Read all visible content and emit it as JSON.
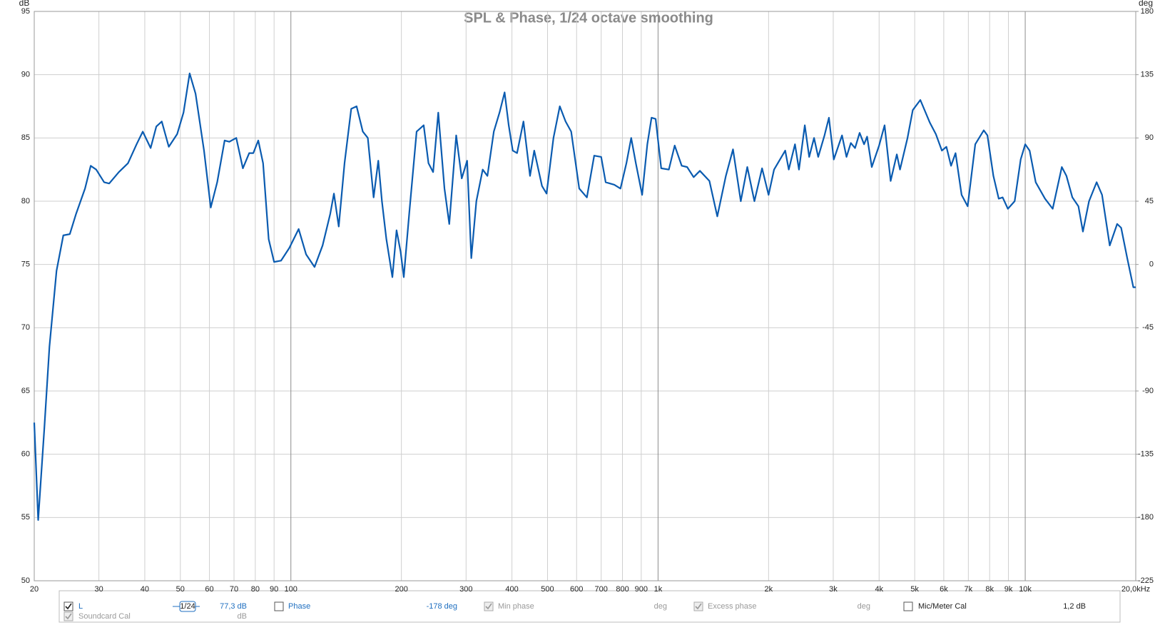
{
  "chart_data": {
    "type": "line",
    "title": "SPL & Phase, 1/24 octave smoothing",
    "y_label": "dB",
    "y2_label": "deg",
    "xscale": "log",
    "grid": true,
    "xlim": [
      20,
      20000
    ],
    "ylim": [
      50,
      95
    ],
    "y2lim": [
      -225,
      180
    ],
    "xticks": [
      20,
      30,
      40,
      50,
      60,
      70,
      80,
      90,
      100,
      200,
      300,
      400,
      500,
      600,
      700,
      800,
      900,
      {
        "value": 1000,
        "label": "1k"
      },
      {
        "value": 2000,
        "label": "2k"
      },
      {
        "value": 3000,
        "label": "3k"
      },
      {
        "value": 4000,
        "label": "4k"
      },
      {
        "value": 5000,
        "label": "5k"
      },
      {
        "value": 6000,
        "label": "6k"
      },
      {
        "value": 7000,
        "label": "7k"
      },
      {
        "value": 8000,
        "label": "8k"
      },
      {
        "value": 9000,
        "label": "9k"
      },
      {
        "value": 10000,
        "label": "10k"
      },
      {
        "value": 20000,
        "label": "20,0kHz"
      }
    ],
    "yticks": [
      50,
      55,
      60,
      65,
      70,
      75,
      80,
      85,
      90,
      95
    ],
    "y2ticks": [
      -225,
      -180,
      -135,
      -90,
      -45,
      0,
      45,
      90,
      135,
      180
    ],
    "x": [
      20,
      20.5,
      21.3,
      22,
      23,
      24,
      25,
      26,
      27.5,
      28.5,
      29.5,
      31,
      32,
      34,
      36,
      38,
      39.5,
      41.5,
      43,
      44.5,
      46.5,
      49,
      51,
      53,
      55,
      58,
      60.5,
      63,
      66,
      68,
      71,
      74,
      77,
      79,
      81.5,
      84,
      87,
      90,
      94,
      99,
      105,
      110,
      116,
      122,
      128,
      131,
      135,
      140,
      146,
      151,
      157,
      162,
      168,
      173,
      177,
      182,
      189,
      194,
      199,
      203,
      210,
      220,
      230,
      237,
      244,
      252,
      262,
      270,
      282,
      292,
      302,
      310,
      320,
      333,
      343,
      357,
      370,
      382,
      392,
      402,
      413,
      430,
      448,
      460,
      483,
      497,
      519,
      540,
      560,
      580,
      610,
      640,
      670,
      700,
      720,
      760,
      790,
      820,
      845,
      870,
      905,
      935,
      960,
      985,
      1020,
      1070,
      1110,
      1160,
      1200,
      1250,
      1300,
      1380,
      1450,
      1530,
      1600,
      1680,
      1750,
      1830,
      1920,
      2000,
      2070,
      2220,
      2270,
      2360,
      2420,
      2510,
      2580,
      2660,
      2730,
      2840,
      2920,
      3010,
      3170,
      3260,
      3350,
      3440,
      3540,
      3640,
      3710,
      3820,
      4000,
      4140,
      4300,
      4470,
      4560,
      4780,
      4940,
      5180,
      5500,
      5710,
      5930,
      6100,
      6280,
      6460,
      6710,
      6970,
      7310,
      7710,
      7890,
      8190,
      8470,
      8680,
      8970,
      9360,
      9720,
      10000,
      10280,
      10680,
      11320,
      11880,
      12580,
      12950,
      13440,
      13960,
      14360,
      14920,
      15650,
      16190,
      16990,
      17800,
      18250,
      18960,
      19700,
      20000
    ],
    "series": [
      {
        "name": "L",
        "color": "#0a5bb0",
        "values": [
          62.5,
          54.8,
          62,
          68.5,
          74.5,
          77.3,
          77.4,
          79,
          81,
          82.8,
          82.5,
          81.5,
          81.4,
          82.3,
          83,
          84.5,
          85.5,
          84.2,
          85.9,
          86.3,
          84.3,
          85.3,
          87,
          90.1,
          88.5,
          84,
          79.5,
          81.5,
          84.8,
          84.7,
          85,
          82.6,
          83.8,
          83.8,
          84.8,
          83,
          77,
          75.2,
          75.3,
          76.3,
          77.8,
          75.8,
          74.8,
          76.5,
          79,
          80.6,
          78,
          83,
          87.3,
          87.5,
          85.5,
          85,
          80.3,
          83.2,
          80,
          77,
          74,
          77.7,
          76,
          74,
          79,
          85.5,
          86,
          83,
          82.3,
          87,
          81,
          78.2,
          85.2,
          81.8,
          83.2,
          75.5,
          80,
          82.5,
          82,
          85.5,
          87,
          88.6,
          86,
          84,
          83.8,
          86.3,
          82,
          84,
          81.2,
          80.6,
          85,
          87.5,
          86.3,
          85.5,
          81,
          80.3,
          83.6,
          83.5,
          81.5,
          81.3,
          81,
          83,
          85,
          83,
          80.5,
          84.5,
          86.6,
          86.5,
          82.6,
          82.5,
          84.4,
          82.8,
          82.7,
          81.9,
          82.4,
          81.6,
          78.8,
          82,
          84.1,
          80,
          82.7,
          80,
          82.6,
          80.5,
          82.5,
          84,
          82.5,
          84.5,
          82.5,
          86,
          83.5,
          85,
          83.5,
          85.2,
          86.6,
          83.3,
          85.2,
          83.5,
          84.6,
          84.2,
          85.4,
          84.5,
          85.1,
          82.7,
          84.4,
          86,
          81.6,
          83.7,
          82.5,
          85,
          87.2,
          88,
          86.2,
          85.3,
          84,
          84.3,
          82.8,
          83.8,
          80.5,
          79.6,
          84.5,
          85.6,
          85.2,
          82,
          80.2,
          80.3,
          79.4,
          80,
          83.3,
          84.5,
          84,
          81.5,
          80.2,
          79.4,
          82.7,
          82,
          80.3,
          79.6,
          77.6,
          80,
          81.5,
          80.5,
          76.5,
          78.2,
          77.9,
          75.5,
          73.2,
          73.2
        ]
      }
    ]
  },
  "controls": [
    {
      "label": "L",
      "checked": true,
      "enabled": true,
      "smoothing": "1/24",
      "value": "77,3 dB",
      "color": "#1f6fc0"
    },
    {
      "label": "Phase",
      "checked": false,
      "enabled": true,
      "value": "-178 deg",
      "color": "#1f6fc0"
    },
    {
      "label": "Min phase",
      "checked": true,
      "enabled": false,
      "value": "deg",
      "color": "#9a9a9a"
    },
    {
      "label": "Excess phase",
      "checked": true,
      "enabled": false,
      "value": "deg",
      "color": "#9a9a9a"
    },
    {
      "label": "Mic/Meter Cal",
      "checked": false,
      "enabled": true,
      "value": "1,2 dB",
      "color": "#222222"
    },
    {
      "label": "Soundcard Cal",
      "checked": true,
      "enabled": false,
      "value": "dB",
      "color": "#9a9a9a"
    }
  ]
}
